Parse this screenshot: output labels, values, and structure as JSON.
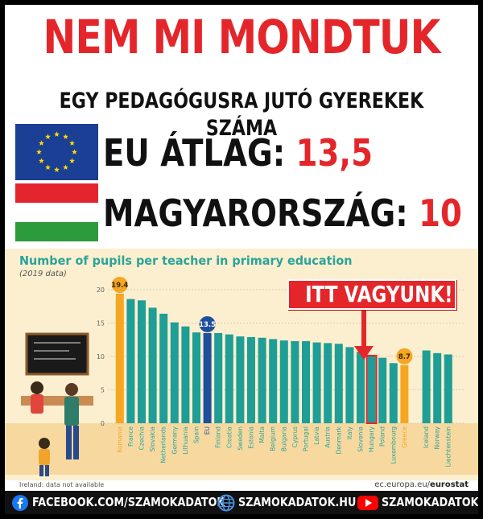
{
  "header": {
    "headline": "NEM MI MONDTUK",
    "subhead": "EGY PEDAGÓGUSRA JUTÓ GYEREKEK SZÁMA",
    "eu_label": "EU ÁTLAG:",
    "eu_value": "13,5",
    "hu_label": "MAGYARORSZÁG:",
    "hu_value": "10"
  },
  "colors": {
    "accent_red": "#e4262a",
    "bar_teal": "#1e9e96",
    "bar_orange": "#f5a623",
    "bar_blue": "#1f4e9c",
    "panel_bg": "#fcefcf"
  },
  "callout": "ITT VAGYUNK!",
  "footnote": "Ireland: data not available",
  "source": {
    "domain": "ec.europa.eu/",
    "brand": "eurostat"
  },
  "social": {
    "facebook": "FACEBOOK.COM/SZAMOKADATOK",
    "web": "SZAMOKADATOK.HU",
    "youtube": "SZAMOKADATOK"
  },
  "chart_data": {
    "type": "bar",
    "title": "Number of pupils per teacher in primary education",
    "subtitle": "(2019 data)",
    "ylim": [
      0,
      20
    ],
    "yticks": [
      0,
      5,
      10,
      15,
      20
    ],
    "grid": true,
    "categories": [
      "Romania",
      "France",
      "Czechia",
      "Slovakia",
      "Netherlands",
      "Germany",
      "Lithuania",
      "Spain",
      "EU",
      "Finland",
      "Croatia",
      "Sweden",
      "Estonia",
      "Malta",
      "Belgium",
      "Bulgaria",
      "Cyprus",
      "Portugal",
      "Latvia",
      "Austria",
      "Denmark",
      "Italy",
      "Slovenia",
      "Hungary",
      "Poland",
      "Luxembourg",
      "Greece",
      "",
      "Iceland",
      "Norway",
      "Liechtenstein"
    ],
    "values": [
      19.4,
      18.6,
      18.4,
      17.3,
      16.4,
      15.1,
      14.5,
      13.6,
      13.5,
      13.5,
      13.3,
      13.0,
      12.9,
      12.8,
      12.6,
      12.4,
      12.3,
      12.3,
      12.1,
      12.0,
      11.9,
      11.4,
      10.7,
      10.0,
      9.8,
      9.0,
      8.7,
      null,
      10.9,
      10.5,
      10.3
    ],
    "highlight": {
      "Romania": "max",
      "EU": "average",
      "Greece": "min",
      "Hungary": "marked"
    },
    "data_labels": [
      {
        "category": "Romania",
        "label": "19.4"
      },
      {
        "category": "EU",
        "label": "13.5"
      },
      {
        "category": "Greece",
        "label": "8.7"
      }
    ]
  }
}
